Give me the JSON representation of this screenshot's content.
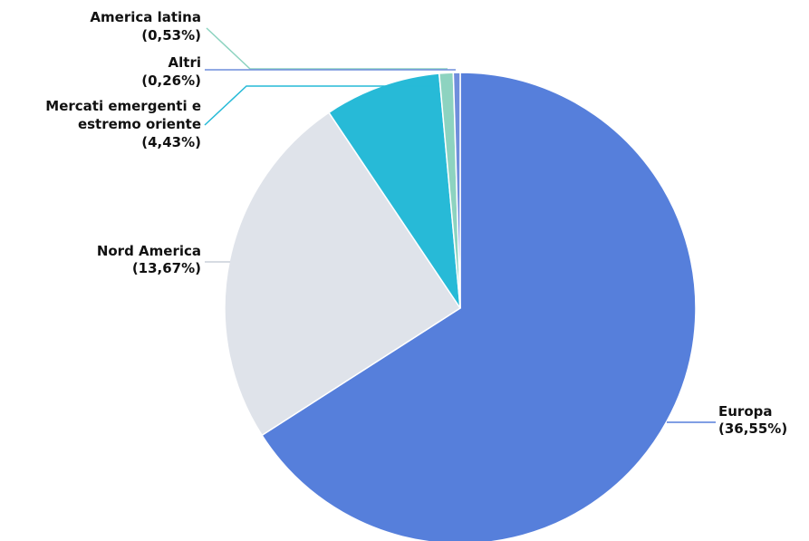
{
  "chart_data": {
    "type": "pie",
    "title": "",
    "categories": [
      "Europa",
      "Nord America",
      "Mercati emergenti e estremo oriente",
      "America latina",
      "Altri"
    ],
    "values": [
      36.55,
      13.67,
      4.43,
      0.53,
      0.26
    ],
    "value_labels": [
      "(36,55%)",
      "(13,67%)",
      "(4,43%)",
      "(0,53%)",
      "(0,26%)"
    ],
    "label_lines": [
      [
        "Europa",
        "(36,55%)"
      ],
      [
        "Nord America",
        "(13,67%)"
      ],
      [
        "Mercati emergenti e",
        "estremo oriente",
        "(4,43%)"
      ],
      [
        "America latina",
        "(0,53%)"
      ],
      [
        "Altri",
        "(0,26%)"
      ]
    ],
    "colors": [
      "#567FDB",
      "#DFE3EA",
      "#27BAD7",
      "#8DD3C0",
      "#6F8EDC"
    ],
    "start_angle": "12 o'clock",
    "direction": "clockwise",
    "legend": "none"
  }
}
